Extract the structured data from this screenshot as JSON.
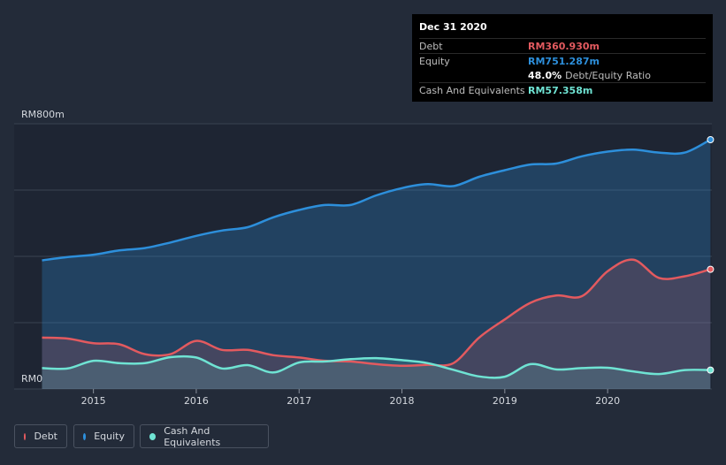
{
  "colors": {
    "debt": "#e35a5f",
    "equity": "#2d8fdb",
    "cash": "#6fe3d3",
    "background": "#232b39",
    "grid": "#3a4351"
  },
  "tooltip": {
    "date": "Dec 31 2020",
    "debt_label": "Debt",
    "debt_value": "RM360.930m",
    "equity_label": "Equity",
    "equity_value": "RM751.287m",
    "ratio_value": "48.0%",
    "ratio_label": "Debt/Equity Ratio",
    "cash_label": "Cash And Equivalents",
    "cash_value": "RM57.358m"
  },
  "legend": {
    "debt": "Debt",
    "equity": "Equity",
    "cash": "Cash And Equivalents"
  },
  "chart_data": {
    "type": "area",
    "title": "",
    "xlabel": "",
    "ylabel": "",
    "ylim": [
      0,
      800
    ],
    "y_tick_labels": [
      "RM0",
      "RM800m"
    ],
    "x_tick_labels": [
      "2015",
      "2016",
      "2017",
      "2018",
      "2019",
      "2020"
    ],
    "x_ticks": [
      2015,
      2016,
      2017,
      2018,
      2019,
      2020
    ],
    "xlim": [
      2014.5,
      2021.0
    ],
    "grid": true,
    "series": [
      {
        "name": "Equity",
        "x": [
          2014.5,
          2014.75,
          2015.0,
          2015.25,
          2015.5,
          2015.75,
          2016.0,
          2016.25,
          2016.5,
          2016.75,
          2017.0,
          2017.25,
          2017.5,
          2017.75,
          2018.0,
          2018.25,
          2018.5,
          2018.75,
          2019.0,
          2019.25,
          2019.5,
          2019.75,
          2020.0,
          2020.25,
          2020.5,
          2020.75,
          2021.0
        ],
        "values": [
          388,
          398,
          405,
          418,
          425,
          442,
          462,
          478,
          488,
          518,
          540,
          555,
          555,
          584,
          606,
          618,
          612,
          640,
          660,
          677,
          680,
          702,
          716,
          722,
          713,
          713,
          752
        ]
      },
      {
        "name": "Debt",
        "x": [
          2014.5,
          2014.75,
          2015.0,
          2015.25,
          2015.5,
          2015.75,
          2016.0,
          2016.25,
          2016.5,
          2016.75,
          2017.0,
          2017.25,
          2017.5,
          2017.75,
          2018.0,
          2018.25,
          2018.5,
          2018.75,
          2019.0,
          2019.25,
          2019.5,
          2019.75,
          2020.0,
          2020.25,
          2020.5,
          2020.75,
          2021.0
        ],
        "values": [
          155,
          152,
          138,
          135,
          105,
          105,
          145,
          118,
          118,
          102,
          95,
          85,
          83,
          75,
          70,
          73,
          78,
          155,
          210,
          260,
          282,
          280,
          355,
          390,
          335,
          340,
          361
        ]
      },
      {
        "name": "Cash And Equivalents",
        "x": [
          2014.5,
          2014.75,
          2015.0,
          2015.25,
          2015.5,
          2015.75,
          2016.0,
          2016.25,
          2016.5,
          2016.75,
          2017.0,
          2017.25,
          2017.5,
          2017.75,
          2018.0,
          2018.25,
          2018.5,
          2018.75,
          2019.0,
          2019.25,
          2019.5,
          2019.75,
          2020.0,
          2020.25,
          2020.5,
          2020.75,
          2021.0
        ],
        "values": [
          63,
          62,
          85,
          78,
          78,
          96,
          95,
          62,
          72,
          50,
          80,
          83,
          90,
          93,
          87,
          78,
          58,
          38,
          37,
          75,
          59,
          63,
          64,
          53,
          45,
          57,
          57
        ]
      }
    ]
  }
}
